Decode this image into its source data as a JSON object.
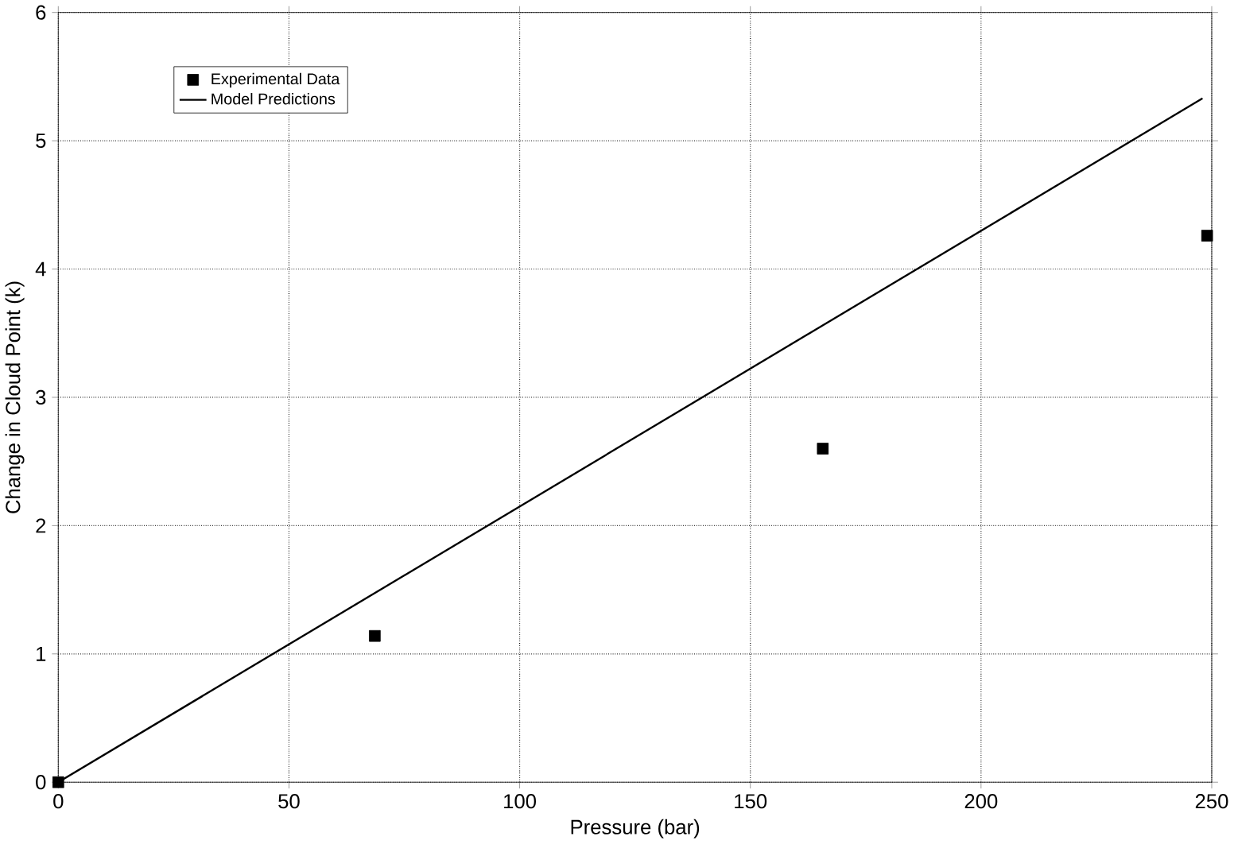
{
  "chart_data": {
    "type": "scatter",
    "xlabel": "Pressure (bar)",
    "ylabel": "Change in Cloud Point (k)",
    "xlim": [
      0,
      250
    ],
    "ylim": [
      0,
      6
    ],
    "xticks": [
      0,
      50,
      100,
      150,
      200,
      250
    ],
    "yticks": [
      0,
      1,
      2,
      3,
      4,
      5,
      6
    ],
    "grid": true,
    "legend": "top left",
    "series": [
      {
        "name": "Experimental Data",
        "marker": "square",
        "color": "#000000",
        "x": [
          0,
          68.6,
          165.7,
          249
        ],
        "values": [
          0,
          1.14,
          2.6,
          4.26
        ]
      },
      {
        "name": "Model Predictions",
        "type": "line",
        "marker": "none",
        "line_style": "solid",
        "color": "#000000",
        "x": [
          0,
          248
        ],
        "values": [
          0,
          5.33
        ]
      }
    ]
  }
}
